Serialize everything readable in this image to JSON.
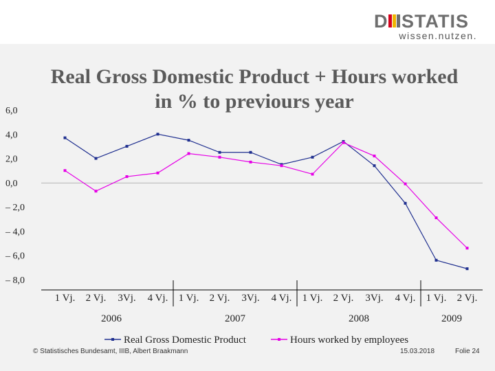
{
  "brand": {
    "logo_text": "DESTATIS",
    "tagline": "wissen.nutzen.",
    "colors": {
      "logo": "#6e6e6e",
      "logo_accent_red": "#d6001c",
      "logo_accent_yellow": "#f0b400"
    }
  },
  "slide": {
    "title_line1": "Real Gross Domestic Product + Hours worked",
    "title_line2": "in % to previours year"
  },
  "footer": {
    "copyright": "© Statistisches Bundesamt, IIIB, Albert Braakmann",
    "date": "15.03.2018",
    "slide_number": "Folie 24"
  },
  "chart_data": {
    "type": "line",
    "categories": [
      "1 Vj.",
      "2 Vj.",
      "3Vj.",
      "4 Vj.",
      "1 Vj.",
      "2 Vj.",
      "3Vj.",
      "4 Vj.",
      "1 Vj.",
      "2 Vj.",
      "3Vj.",
      "4 Vj.",
      "1 Vj.",
      "2 Vj."
    ],
    "year_groups": [
      {
        "label": "2006",
        "start": 0,
        "end": 3
      },
      {
        "label": "2007",
        "start": 4,
        "end": 7
      },
      {
        "label": "2008",
        "start": 8,
        "end": 11
      },
      {
        "label": "2009",
        "start": 12,
        "end": 13
      }
    ],
    "series": [
      {
        "name": "Real Gross Domestic Product",
        "color": "#1f2f8f",
        "values": [
          3.7,
          2.0,
          3.0,
          4.0,
          3.5,
          2.5,
          2.5,
          1.5,
          2.1,
          3.4,
          1.4,
          -1.7,
          -6.4,
          -7.1
        ]
      },
      {
        "name": "Hours worked by employees",
        "color": "#e600e6",
        "values": [
          1.0,
          -0.7,
          0.5,
          0.8,
          2.4,
          2.1,
          1.7,
          1.4,
          0.7,
          3.3,
          2.2,
          -0.1,
          -2.9,
          -5.4
        ]
      }
    ],
    "y_ticks": [
      "6,0",
      "4,0",
      "2,0",
      "0,0",
      "– 2,0",
      "– 4,0",
      "– 6,0",
      "– 8,0"
    ],
    "ylim": [
      -8,
      6
    ],
    "legend_position": "bottom",
    "grid": false
  }
}
